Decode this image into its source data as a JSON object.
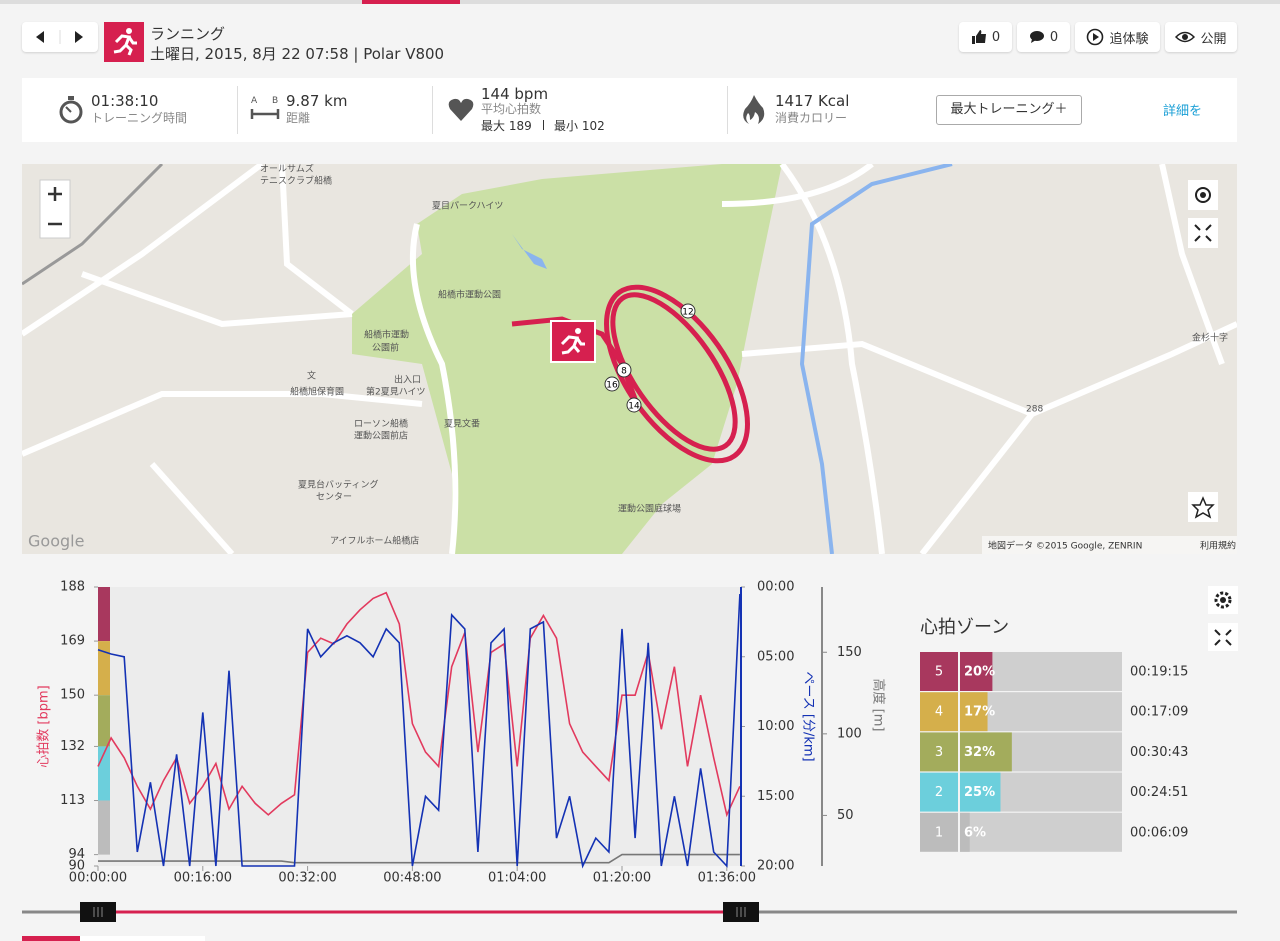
{
  "header": {
    "activity": "ランニング",
    "date": "土曜日, 2015, 8月 22 07:58 | Polar V800",
    "likes": "0",
    "comments": "0",
    "relive": "追体験",
    "share": "公開"
  },
  "summary": {
    "duration": "01:38:10",
    "duration_label": "トレーニング時間",
    "distance_icon": [
      "A",
      "B"
    ],
    "distance": "9.87 km",
    "distance_label": "距離",
    "heart_rate": "144 bpm",
    "heart_rate_label": "平均心拍数",
    "heart_rate_max": "最大 189",
    "heart_rate_min": "最小 102",
    "calories": "1417 Kcal",
    "calories_label": "消費カロリー",
    "training_button": "最大トレーニング＋",
    "details": "詳細を"
  },
  "map": {
    "labels": [
      "オールサムズ",
      "テニスクラブ船橋",
      "夏目パークハイツ",
      "船橋市運動公園",
      "船橋市運動",
      "公園前",
      "文",
      "船橋旭保育園",
      "出入口",
      "第2夏見ハイツ",
      "ローソン船橋",
      "運動公園前店",
      "夏見文番",
      "夏見台バッティング",
      "センター",
      "アイフルホーム船橋店",
      "運動公園庭球場",
      "金杉十字",
      "288"
    ],
    "lap_markers": [
      "12",
      "8",
      "16",
      "14"
    ],
    "logo": "Google",
    "attribution": "地図データ ©2015 Google, ZENRIN",
    "terms": "利用規約"
  },
  "chart_data": {
    "type": "line",
    "x": [
      0,
      2,
      4,
      6,
      8,
      10,
      12,
      14,
      16,
      18,
      20,
      22,
      24,
      26,
      28,
      30,
      32,
      34,
      36,
      38,
      40,
      42,
      44,
      46,
      48,
      50,
      52,
      54,
      56,
      58,
      60,
      62,
      64,
      66,
      68,
      70,
      72,
      74,
      76,
      78,
      80,
      82,
      84,
      86,
      88,
      90,
      92,
      94,
      96,
      98
    ],
    "xlim": [
      0,
      98.17
    ],
    "xticks": [
      {
        "value": 0,
        "label": "00:00:00"
      },
      {
        "value": 16,
        "label": "00:16:00"
      },
      {
        "value": 32,
        "label": "00:32:00"
      },
      {
        "value": 48,
        "label": "00:48:00"
      },
      {
        "value": 64,
        "label": "01:04:00"
      },
      {
        "value": 80,
        "label": "01:20:00"
      },
      {
        "value": 96,
        "label": "01:36:00"
      }
    ],
    "ylabel": "心拍数 [bpm]",
    "ylim": [
      90,
      188
    ],
    "yticks": [
      90,
      94,
      113,
      132,
      150,
      169,
      188
    ],
    "y2label": "ペース [分/km]",
    "y2lim": [
      20,
      0
    ],
    "y2ticks": [
      {
        "value": 0,
        "label": "00:00"
      },
      {
        "value": 5,
        "label": "05:00"
      },
      {
        "value": 10,
        "label": "10:00"
      },
      {
        "value": 15,
        "label": "15:00"
      },
      {
        "value": 20,
        "label": "20:00"
      }
    ],
    "y3label": "高度 [m]",
    "y3lim": [
      19,
      190
    ],
    "y3ticks": [
      50,
      100,
      150
    ],
    "series": [
      {
        "name": "心拍数",
        "color": "#e23a5e",
        "axis": "y",
        "values": [
          125,
          135,
          128,
          118,
          110,
          120,
          128,
          112,
          118,
          126,
          110,
          118,
          112,
          108,
          112,
          115,
          165,
          170,
          168,
          175,
          180,
          184,
          186,
          175,
          140,
          130,
          125,
          160,
          172,
          130,
          165,
          168,
          125,
          170,
          178,
          170,
          140,
          130,
          125,
          120,
          150,
          150,
          165,
          138,
          160,
          125,
          150,
          128,
          108,
          118
        ]
      },
      {
        "name": "ペース",
        "color": "#1432b4",
        "axis": "y2",
        "values": [
          4.5,
          4.8,
          5,
          19,
          14,
          20,
          12,
          20,
          9,
          20,
          6,
          20,
          20,
          20,
          20,
          20,
          3,
          5,
          4,
          3.5,
          4,
          5,
          3,
          4,
          20,
          15,
          16,
          2,
          3,
          19,
          4,
          3,
          20,
          3,
          2.5,
          18,
          15,
          20,
          18,
          19,
          3,
          18,
          4,
          20,
          15,
          20,
          13,
          19,
          20,
          0.5
        ]
      },
      {
        "name": "高度",
        "color": "#777777",
        "axis": "y3",
        "values": [
          22,
          22,
          22,
          22,
          22,
          22,
          22,
          22,
          22,
          22,
          22,
          22,
          22,
          22,
          22,
          21,
          21,
          21,
          21,
          21,
          21,
          21,
          21,
          21,
          21,
          21,
          21,
          21,
          21,
          21,
          21,
          21,
          21,
          21,
          21,
          21,
          21,
          21,
          21,
          21,
          26,
          26,
          26,
          26,
          26,
          26,
          26,
          26,
          26,
          26
        ]
      }
    ]
  },
  "zones": {
    "title": "心拍ゾーン",
    "rows": [
      {
        "zone": "5",
        "color": "#a8385e",
        "percent": 20,
        "percent_label": "20%",
        "time": "00:19:15"
      },
      {
        "zone": "4",
        "color": "#d5af4b",
        "percent": 17,
        "percent_label": "17%",
        "time": "00:17:09"
      },
      {
        "zone": "3",
        "color": "#a3ac5c",
        "percent": 32,
        "percent_label": "32%",
        "time": "00:30:43"
      },
      {
        "zone": "2",
        "color": "#6ccfdc",
        "percent": 25,
        "percent_label": "25%",
        "time": "00:24:51"
      },
      {
        "zone": "1",
        "color": "#bcbcbc",
        "percent": 6,
        "percent_label": "6%",
        "time": "00:06:09"
      }
    ]
  }
}
